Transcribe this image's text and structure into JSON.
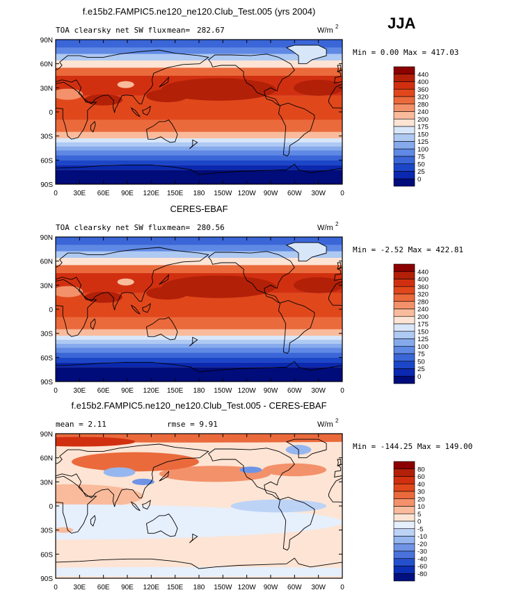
{
  "season": "JJA",
  "panels": [
    {
      "title": "f.e15b2.FAMPIC5.ne120_ne120.Club_Test.005 (yrs 2004)",
      "left_label": "TOA clearsky net SW flux",
      "stat_label": "mean=",
      "stat_value": "282.67",
      "units": "W/m",
      "units_sup": "2",
      "minmax": "Min =    0.00 Max = 417.03",
      "colorbar": [
        "440",
        "400",
        "360",
        "320",
        "280",
        "240",
        "200",
        "175",
        "150",
        "125",
        "100",
        "75",
        "50",
        "25",
        "0"
      ],
      "colors": [
        "#8b0000",
        "#b32008",
        "#d13010",
        "#e0481c",
        "#ea6a3c",
        "#f3916a",
        "#f9bb9c",
        "#fde4d4",
        "#d8e6fa",
        "#aec9f2",
        "#86a9ec",
        "#5f89e4",
        "#3a66d8",
        "#1c46c8",
        "#0a28b0",
        "#000c7a"
      ]
    },
    {
      "title": "CERES-EBAF",
      "left_label": "TOA clearsky net SW flux",
      "stat_label": "mean=",
      "stat_value": "280.56",
      "units": "W/m",
      "units_sup": "2",
      "minmax": "Min =  -2.52 Max = 422.81",
      "colorbar": [
        "440",
        "400",
        "360",
        "320",
        "280",
        "240",
        "200",
        "175",
        "150",
        "125",
        "100",
        "75",
        "50",
        "25",
        "0"
      ],
      "colors": [
        "#8b0000",
        "#b32008",
        "#d13010",
        "#e0481c",
        "#ea6a3c",
        "#f3916a",
        "#f9bb9c",
        "#fde4d4",
        "#d8e6fa",
        "#aec9f2",
        "#86a9ec",
        "#5f89e4",
        "#3a66d8",
        "#1c46c8",
        "#0a28b0",
        "#000c7a"
      ]
    },
    {
      "title": "f.e15b2.FAMPIC5.ne120_ne120.Club_Test.005 - CERES-EBAF",
      "left_label": "mean =    2.11",
      "rmse_label": "rmse =    9.91",
      "units": "W/m",
      "units_sup": "2",
      "minmax": "Min = -144.25 Max = 149.00",
      "colorbar": [
        "80",
        "60",
        "40",
        "30",
        "20",
        "10",
        "5",
        "0",
        "-5",
        "-10",
        "-20",
        "-30",
        "-40",
        "-60",
        "-80"
      ],
      "colors": [
        "#8b0000",
        "#b32008",
        "#d13010",
        "#e0481c",
        "#ea6a3c",
        "#f3916a",
        "#f9bb9c",
        "#fde4d4",
        "#e6effc",
        "#bcd3f6",
        "#96b6ef",
        "#6f94e6",
        "#4a72dc",
        "#2450cc",
        "#0c2eb4",
        "#00107e"
      ]
    }
  ],
  "lat_labels": [
    "90N",
    "60N",
    "30N",
    "0",
    "30S",
    "60S",
    "90S"
  ],
  "lon_labels": [
    "0",
    "30E",
    "60E",
    "90E",
    "120E",
    "150E",
    "180",
    "150W",
    "120W",
    "90W",
    "60W",
    "30W",
    "0"
  ]
}
